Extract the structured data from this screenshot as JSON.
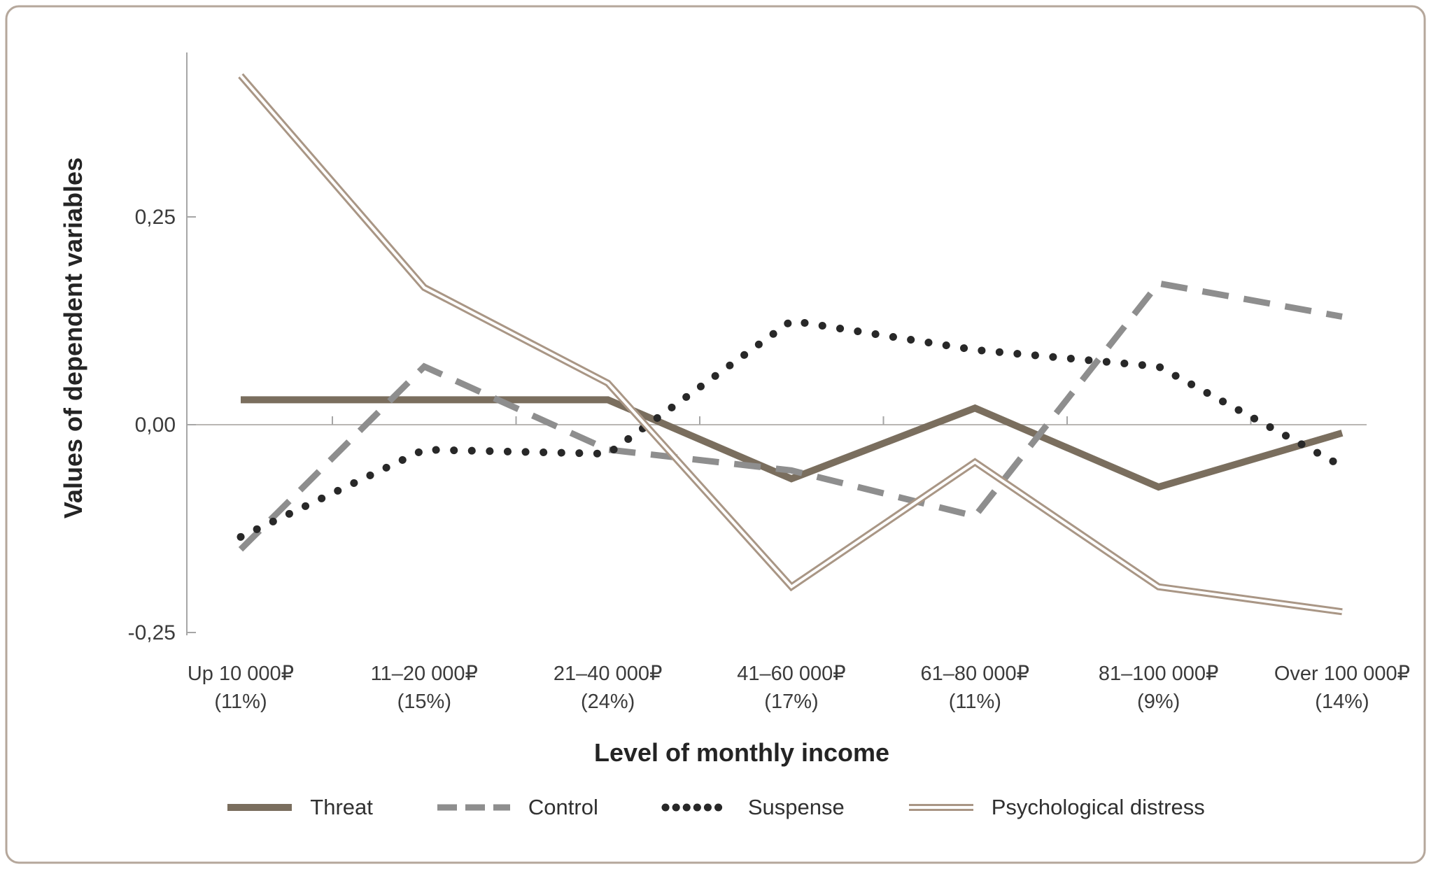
{
  "chart_data": {
    "type": "line",
    "xlabel": "Level of monthly income",
    "ylabel": "Values of dependent variables",
    "ylim": [
      -0.26,
      0.45
    ],
    "grid": false,
    "legend_position": "bottom",
    "y_ticks": [
      {
        "v": 0.25,
        "label": "0,25"
      },
      {
        "v": 0.0,
        "label": "0,00"
      },
      {
        "v": -0.25,
        "label": "-0,25"
      }
    ],
    "categories": [
      {
        "label": "Up 10 000₽",
        "percent": "(11%)"
      },
      {
        "label": "11–20 000₽",
        "percent": "(15%)"
      },
      {
        "label": "21–40 000₽",
        "percent": "(24%)"
      },
      {
        "label": "41–60 000₽",
        "percent": "(17%)"
      },
      {
        "label": "61–80 000₽",
        "percent": "(11%)"
      },
      {
        "label": "81–100 000₽",
        "percent": "(9%)"
      },
      {
        "label": "Over 100 000₽",
        "percent": "(14%)"
      }
    ],
    "series": [
      {
        "name": "Threat",
        "style": "solid",
        "color": "#7a6e5e",
        "values": [
          0.03,
          0.03,
          0.03,
          -0.065,
          0.02,
          -0.075,
          -0.01
        ]
      },
      {
        "name": "Control",
        "style": "dashed",
        "color": "#8e8e8e",
        "values": [
          -0.15,
          0.07,
          -0.03,
          -0.055,
          -0.11,
          0.17,
          0.13
        ]
      },
      {
        "name": "Suspense",
        "style": "dotted",
        "color": "#282828",
        "values": [
          -0.135,
          -0.03,
          -0.035,
          0.125,
          0.09,
          0.07,
          -0.05
        ]
      },
      {
        "name": "Psychological distress",
        "style": "double",
        "color": "#a99685",
        "values": [
          0.42,
          0.165,
          0.05,
          -0.195,
          -0.045,
          -0.195,
          -0.225
        ]
      }
    ],
    "colors": {
      "axis": "#a6a6a6",
      "zero_line": "#b9b6b3",
      "card_border": "#b5a79b",
      "text": "#3b3b3b",
      "background": "#ffffff"
    }
  }
}
